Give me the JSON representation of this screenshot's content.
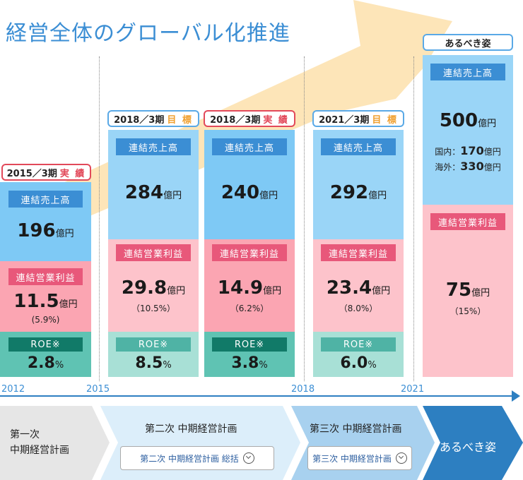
{
  "title": "経営全体のグローバル化推進",
  "colors": {
    "sales": "#7ec9f5",
    "profit": "#fba5b2",
    "roe": "#5fc3b3",
    "accent": "#3b8ed4"
  },
  "chart_data": {
    "type": "bar",
    "columns": [
      {
        "tag": "2015／3期",
        "tag_kind": "実 績",
        "sales_label": "連結売上高",
        "sales": "196",
        "sales_unit": "億円",
        "profit_label": "連結営業利益",
        "profit": "11.5",
        "profit_unit": "億円",
        "margin": "(5.9%)",
        "roe_label": "ROE※",
        "roe": "2.8",
        "roe_unit": "%"
      },
      {
        "tag": "2018／3期",
        "tag_kind": "目 標",
        "sales_label": "連結売上高",
        "sales": "284",
        "sales_unit": "億円",
        "profit_label": "連結営業利益",
        "profit": "29.8",
        "profit_unit": "億円",
        "margin": "（10.5%）",
        "roe_label": "ROE※",
        "roe": "8.5",
        "roe_unit": "%"
      },
      {
        "tag": "2018／3期",
        "tag_kind": "実 績",
        "sales_label": "連結売上高",
        "sales": "240",
        "sales_unit": "億円",
        "profit_label": "連結営業利益",
        "profit": "14.9",
        "profit_unit": "億円",
        "margin": "（6.2%）",
        "roe_label": "ROE※",
        "roe": "3.8",
        "roe_unit": "%"
      },
      {
        "tag": "2021／3期",
        "tag_kind": "目 標",
        "sales_label": "連結売上高",
        "sales": "292",
        "sales_unit": "億円",
        "profit_label": "連結営業利益",
        "profit": "23.4",
        "profit_unit": "億円",
        "margin": "（8.0%）",
        "roe_label": "ROE※",
        "roe": "6.0",
        "roe_unit": "%"
      },
      {
        "tag": "あるべき姿",
        "sales_label": "連結売上高",
        "sales": "500",
        "sales_unit": "億円",
        "domestic_label": "国内：",
        "domestic": "170",
        "overseas_label": "海外：",
        "overseas": "330",
        "breakdown_unit": "億円",
        "profit_label": "連結営業利益",
        "profit": "75",
        "profit_unit": "億円",
        "margin": "（15%）"
      }
    ],
    "years": [
      "2012",
      "2015",
      "2018",
      "2021"
    ]
  },
  "phases": {
    "p1": "第一次\n中期経営計画",
    "p2": "第二次 中期経営計画",
    "p2_button": "第二次 中期経営計画 総括",
    "p3": "第三次 中期経営計画",
    "p3_button": "第三次 中期経営計画",
    "p4": "あるべき姿"
  }
}
